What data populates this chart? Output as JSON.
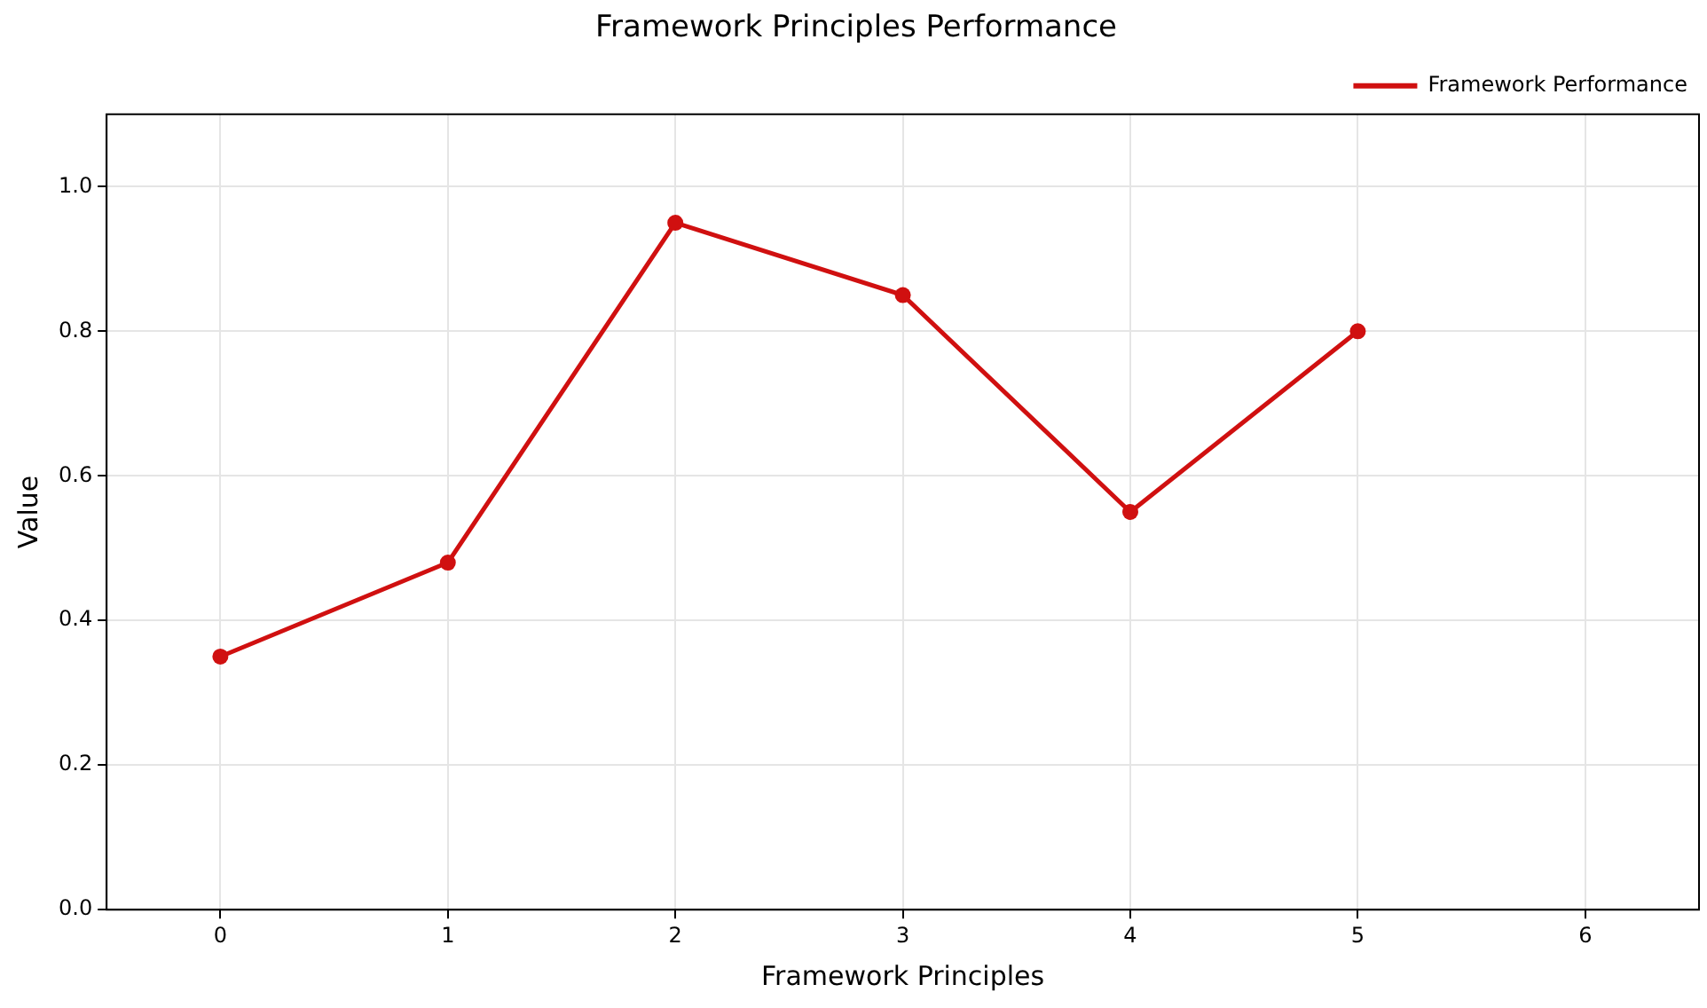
{
  "chart_data": {
    "type": "line",
    "title": "Framework Principles Performance",
    "xlabel": "Framework Principles",
    "ylabel": "Value",
    "x": [
      0,
      1,
      2,
      3,
      4,
      5
    ],
    "series": [
      {
        "name": "Framework Performance",
        "color": "#d01010",
        "values": [
          0.35,
          0.48,
          0.95,
          0.85,
          0.55,
          0.8
        ]
      }
    ],
    "xlim": [
      -0.5,
      6.5
    ],
    "xticks": [
      0,
      1,
      2,
      3,
      4,
      5,
      6
    ],
    "ylim": [
      0,
      1.1
    ],
    "yticks": [
      {
        "value": 0,
        "label": "0.0"
      },
      {
        "value": 0.2,
        "label": "0.2"
      },
      {
        "value": 0.4,
        "label": "0.4"
      },
      {
        "value": 0.6,
        "label": "0.6"
      },
      {
        "value": 0.8,
        "label": "0.8"
      },
      {
        "value": 1,
        "label": "1.0"
      }
    ],
    "grid": true,
    "legend": "top right",
    "marker": "circle",
    "line_style": "solid"
  }
}
